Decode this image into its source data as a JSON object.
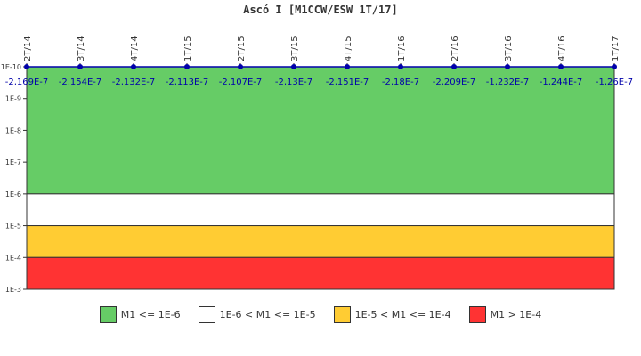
{
  "chart_data": {
    "type": "line",
    "title": "Ascó I [M1CCW/ESW 1T/17]",
    "categories": [
      "2T/14",
      "3T/14",
      "4T/14",
      "1T/15",
      "2T/15",
      "3T/15",
      "4T/15",
      "1T/16",
      "2T/16",
      "3T/16",
      "4T/16",
      "1T/17"
    ],
    "value_labels": [
      "-2,169E-7",
      "-2,154E-7",
      "-2,132E-7",
      "-2,113E-7",
      "-2,107E-7",
      "-2,13E-7",
      "-2,151E-7",
      "-2,18E-7",
      "-2,209E-7",
      "-1,232E-7",
      "-1,244E-7",
      "-1,26E-7"
    ],
    "values": [
      -2.169e-07,
      -2.154e-07,
      -2.132e-07,
      -2.113e-07,
      -2.107e-07,
      -2.13e-07,
      -2.151e-07,
      -2.18e-07,
      -2.209e-07,
      -1.232e-07,
      -1.244e-07,
      -1.26e-07
    ],
    "yscale": "log",
    "y_ticks": [
      "1E-10",
      "1E-9",
      "1E-8",
      "1E-7",
      "1E-6",
      "1E-5",
      "1E-4",
      "1E-3"
    ],
    "ylim": [
      "1E-10",
      "1E-3"
    ],
    "y_inverted": true,
    "series_color": "#0000aa",
    "bands": [
      {
        "label": "M1 <= 1E-6",
        "from_exp": -10,
        "to_exp": -6,
        "color": "#66cc66"
      },
      {
        "label": "1E-6 < M1 <= 1E-5",
        "from_exp": -6,
        "to_exp": -5,
        "color": "#ffffff"
      },
      {
        "label": "1E-5 < M1 <= 1E-4",
        "from_exp": -5,
        "to_exp": -4,
        "color": "#ffcc33"
      },
      {
        "label": "M1 > 1E-4",
        "from_exp": -4,
        "to_exp": -3,
        "color": "#ff3333"
      }
    ],
    "legend_position": "bottom"
  }
}
